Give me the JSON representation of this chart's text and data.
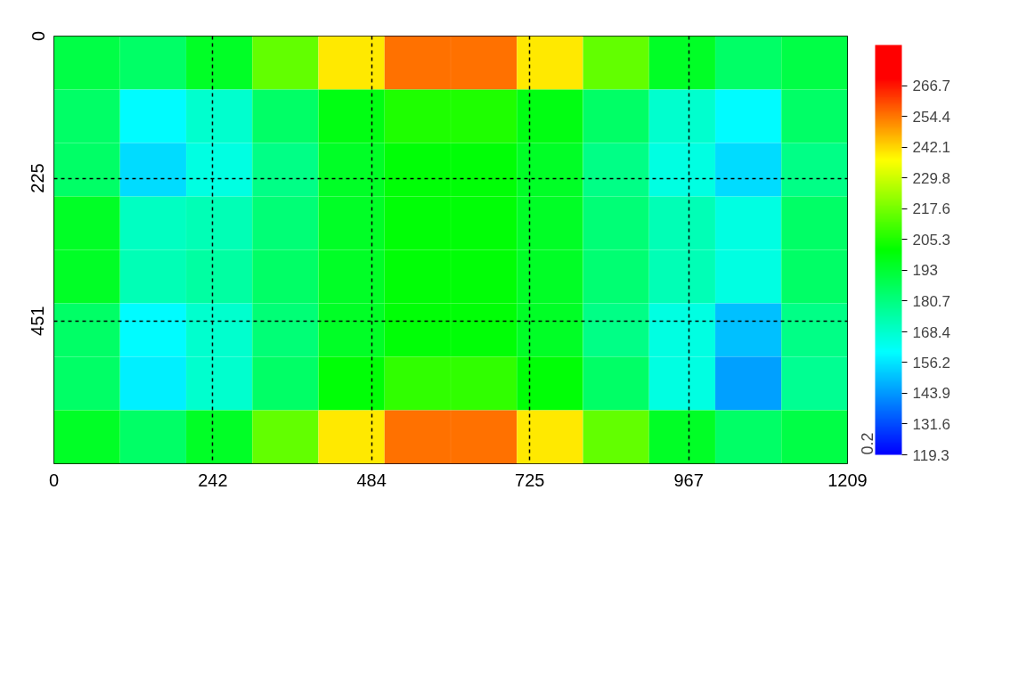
{
  "chart_data": {
    "type": "heatmap",
    "x": [
      50.4,
      151.1,
      251.9,
      352.6,
      453.4,
      554.1,
      654.9,
      755.6,
      856.4,
      957.1,
      1057.9,
      1158.6
    ],
    "y": [
      42.3,
      126.9,
      211.6,
      296.2,
      380.8,
      465.4,
      550.1,
      634.7
    ],
    "xlim": [
      0,
      1209
    ],
    "xticks": [
      0,
      242,
      484,
      725,
      967,
      1209
    ],
    "ylim": [
      677,
      0
    ],
    "yticks": [
      0,
      225,
      451
    ],
    "cells": [
      [
        190,
        185,
        195,
        215,
        240,
        255,
        255,
        240,
        215,
        195,
        185,
        190
      ],
      [
        185,
        160,
        168,
        185,
        198,
        205,
        205,
        198,
        185,
        168,
        160,
        185
      ],
      [
        185,
        155,
        165,
        180,
        195,
        200,
        200,
        195,
        180,
        165,
        155,
        180
      ],
      [
        195,
        170,
        172,
        182,
        195,
        200,
        200,
        195,
        182,
        172,
        165,
        185
      ],
      [
        195,
        172,
        175,
        185,
        195,
        200,
        200,
        195,
        183,
        172,
        165,
        185
      ],
      [
        185,
        160,
        168,
        182,
        195,
        200,
        200,
        195,
        180,
        165,
        150,
        180
      ],
      [
        185,
        158,
        168,
        185,
        200,
        208,
        208,
        200,
        185,
        165,
        145,
        178
      ],
      [
        195,
        185,
        195,
        215,
        240,
        255,
        255,
        240,
        215,
        195,
        185,
        190
      ]
    ],
    "clim": [
      119.3,
      283.0
    ],
    "cticks": [
      119.3,
      131.6,
      143.9,
      156.2,
      168.4,
      180.7,
      193.0,
      205.3,
      217.6,
      229.8,
      242.1,
      254.4,
      266.7
    ],
    "clabel": "0.2",
    "grid": true
  }
}
